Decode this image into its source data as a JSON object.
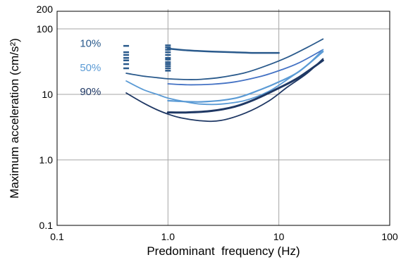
{
  "chart_data": {
    "type": "line",
    "title": "",
    "xlabel": "Predominant  frequency (Hz)",
    "ylabel": "Maximum acceleration (cm/s²)",
    "xscale": "log",
    "yscale": "log",
    "xlim": [
      0.1,
      100
    ],
    "ylim": [
      0.1,
      200
    ],
    "grid": true,
    "xticks": [
      {
        "value": 0.1,
        "label": "0.1"
      },
      {
        "value": 1,
        "label": "1.0"
      },
      {
        "value": 10,
        "label": "10"
      },
      {
        "value": 100,
        "label": "100"
      }
    ],
    "yticks": [
      {
        "value": 0.1,
        "label": "0.1"
      },
      {
        "value": 1,
        "label": "1.0"
      },
      {
        "value": 10,
        "label": "10"
      },
      {
        "value": 100,
        "label": "100"
      },
      {
        "value": 200,
        "label": "200"
      }
    ],
    "annotations": [
      {
        "text": "10%",
        "x": 0.2,
        "y": 53,
        "color": "#2a5a8c"
      },
      {
        "text": "50%",
        "x": 0.2,
        "y": 22.5,
        "color": "#5b9bd5"
      },
      {
        "text": "90%",
        "x": 0.2,
        "y": 9.8,
        "color": "#1f3864"
      }
    ],
    "series": [
      {
        "color": "#2a5a8c",
        "width": 2.5,
        "x": [
          1.0,
          1.5,
          2.5,
          4,
          6,
          10
        ],
        "y": [
          50,
          47,
          45,
          44,
          43,
          43
        ]
      },
      {
        "color": "#2a5a8c",
        "width": 1.8,
        "x": [
          0.42,
          0.6,
          0.8,
          1.0,
          1.5,
          2,
          3,
          5,
          8,
          12,
          18,
          25
        ],
        "y": [
          21,
          19,
          18,
          17.3,
          16.8,
          17,
          18.2,
          21.5,
          28,
          37,
          52,
          70
        ]
      },
      {
        "color": "#4472c4",
        "width": 1.8,
        "x": [
          1.0,
          1.5,
          2.5,
          4,
          7,
          10,
          15,
          25
        ],
        "y": [
          14.5,
          14,
          14.3,
          15.5,
          19,
          23,
          30,
          48
        ]
      },
      {
        "color": "#5b9bd5",
        "width": 1.8,
        "x": [
          0.42,
          0.6,
          0.8,
          1.0,
          1.5,
          2,
          3,
          5,
          8,
          12,
          18,
          25
        ],
        "y": [
          16,
          11.8,
          10,
          8.8,
          7.6,
          7.1,
          7.1,
          8.1,
          11,
          17,
          28,
          48
        ]
      },
      {
        "color": "#5b9bd5",
        "width": 2.2,
        "x": [
          1.0,
          2,
          4,
          7,
          10,
          15,
          25
        ],
        "y": [
          8,
          7.7,
          8.7,
          12,
          15.5,
          22,
          45
        ]
      },
      {
        "color": "#1f3864",
        "width": 3,
        "x": [
          1.0,
          1.5,
          2.5,
          4,
          6,
          10,
          15,
          25
        ],
        "y": [
          5.3,
          5.3,
          5.6,
          6.5,
          8.3,
          12.5,
          18,
          33
        ]
      },
      {
        "color": "#1f3864",
        "width": 1.8,
        "x": [
          0.42,
          0.6,
          0.8,
          1.0,
          1.3,
          2,
          3,
          5,
          8,
          12,
          18,
          25
        ],
        "y": [
          10.5,
          7.4,
          5.8,
          5,
          4.4,
          3.95,
          4,
          5.2,
          7.8,
          13,
          21,
          35
        ]
      }
    ],
    "markers": [
      {
        "x": 1.0,
        "y": [
          23,
          25,
          27,
          29,
          31,
          34,
          36,
          40,
          44,
          48,
          52,
          56
        ],
        "color": "#2a5a8c"
      },
      {
        "x": 0.42,
        "y": [
          25,
          29,
          33,
          36,
          40,
          44,
          55
        ],
        "color": "#2a5a8c"
      }
    ]
  }
}
